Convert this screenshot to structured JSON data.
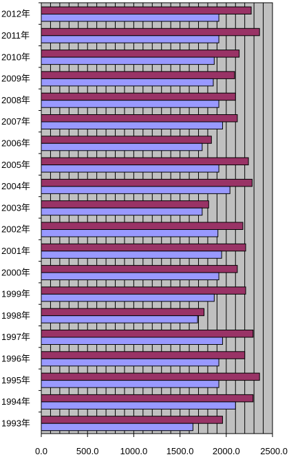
{
  "chart_data": {
    "type": "bar",
    "orientation": "horizontal",
    "categories": [
      "2012年",
      "2011年",
      "2010年",
      "2009年",
      "2008年",
      "2007年",
      "2006年",
      "2005年",
      "2004年",
      "2003年",
      "2002年",
      "2001年",
      "2000年",
      "1999年",
      "1998年",
      "1997年",
      "1996年",
      "1995年",
      "1994年",
      "1993年"
    ],
    "series": [
      {
        "color": "#993366",
        "values": [
          2270,
          2360,
          2140,
          2090,
          2100,
          2120,
          1840,
          2240,
          2280,
          1810,
          2180,
          2210,
          2120,
          2210,
          1760,
          2290,
          2200,
          2360,
          2290,
          1960
        ]
      },
      {
        "color": "#9999ff",
        "values": [
          1920,
          1920,
          1870,
          1860,
          1920,
          1960,
          1740,
          1920,
          2040,
          1740,
          1910,
          1950,
          1920,
          1870,
          1690,
          1960,
          1920,
          1920,
          2100,
          1640
        ]
      }
    ],
    "xlim": [
      0,
      2500
    ],
    "xticks": [
      "0.0",
      "500.0",
      "1000.0",
      "1500.0",
      "2000.0",
      "2500.0"
    ],
    "grid": true,
    "plot_background": "#c0c0c0"
  }
}
